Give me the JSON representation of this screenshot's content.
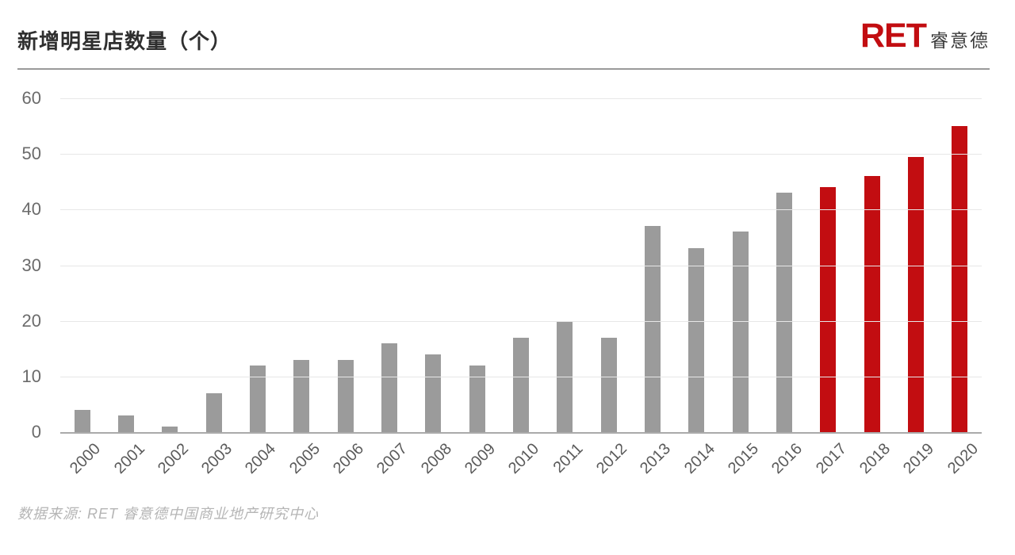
{
  "header": {
    "title": "新增明星店数量（个）",
    "logo": {
      "ret": "RET",
      "cn": "睿意德"
    }
  },
  "chart_data": {
    "type": "bar",
    "title": "新增明星店数量（个）",
    "categories": [
      "2000",
      "2001",
      "2002",
      "2003",
      "2004",
      "2005",
      "2006",
      "2007",
      "2008",
      "2009",
      "2010",
      "2011",
      "2012",
      "2013",
      "2014",
      "2015",
      "2016",
      "2017",
      "2018",
      "2019",
      "2020"
    ],
    "values": [
      4,
      3,
      1,
      7,
      12,
      13,
      13,
      16,
      14,
      12,
      17,
      20,
      17,
      37,
      33,
      36,
      43,
      44,
      46,
      49.5,
      55
    ],
    "highlight_years": [
      "2017",
      "2018",
      "2019",
      "2020"
    ],
    "xlabel": "",
    "ylabel": "",
    "ylim": [
      0,
      60
    ],
    "yticks": [
      0,
      10,
      20,
      30,
      40,
      50,
      60
    ],
    "grid": true,
    "legend": "none",
    "bar_color": "#9b9b9b",
    "highlight_color": "#c20d11"
  },
  "footer": {
    "source": "数据来源: RET 睿意德中国商业地产研究中心"
  },
  "colors": {
    "accent_red": "#c20d11",
    "bar_gray": "#9b9b9b",
    "gridline": "#e7e7e7",
    "axis_line": "#aaaaaa",
    "title_text": "#2f2f2f",
    "tick_text": "#6b6b6b",
    "source_text": "#b5b5b5"
  }
}
